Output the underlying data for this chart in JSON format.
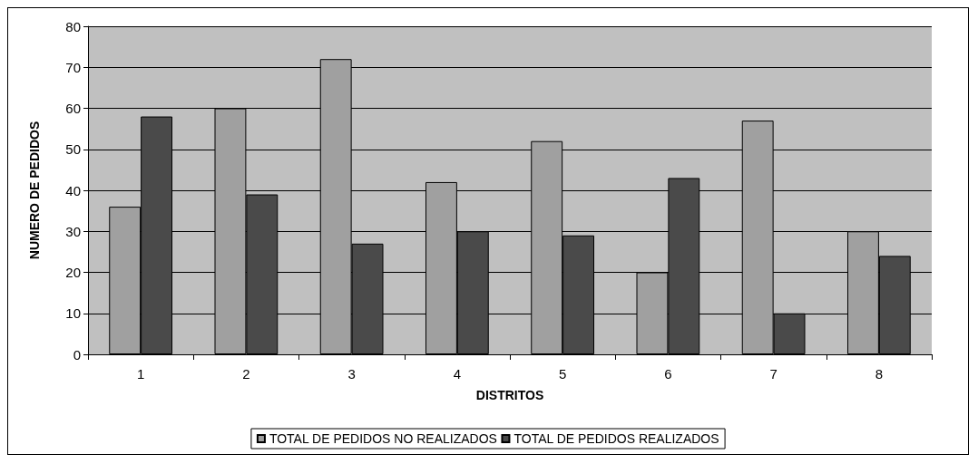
{
  "chart_data": {
    "type": "bar",
    "xlabel": "DISTRITOS",
    "ylabel": "NUMERO DE PEDIDOS",
    "categories": [
      "1",
      "2",
      "3",
      "4",
      "5",
      "6",
      "7",
      "8"
    ],
    "series": [
      {
        "name": "TOTAL DE PEDIDOS NO REALIZADOS",
        "color": "#a0a0a0",
        "values": [
          36,
          60,
          72,
          42,
          52,
          20,
          57,
          30
        ]
      },
      {
        "name": "TOTAL DE PEDIDOS REALIZADOS",
        "color": "#4a4a4a",
        "values": [
          58,
          39,
          27,
          30,
          29,
          43,
          10,
          24
        ]
      }
    ],
    "ylim": [
      0,
      80
    ],
    "yticks": [
      0,
      10,
      20,
      30,
      40,
      50,
      60,
      70,
      80
    ],
    "grid": "y",
    "legend": "bottom"
  }
}
